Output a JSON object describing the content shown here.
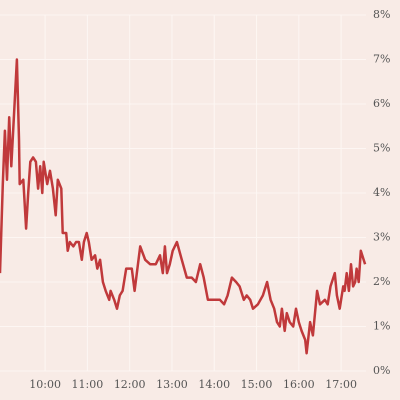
{
  "chart_data": {
    "type": "line",
    "x": [
      536,
      540,
      543,
      546,
      549,
      552,
      554,
      557,
      560,
      563,
      564,
      569,
      573,
      576,
      579,
      583,
      587,
      590,
      593,
      596,
      598,
      603,
      607,
      611,
      615,
      618,
      623,
      625,
      630,
      632,
      635,
      640,
      644,
      648,
      652,
      655,
      659,
      662,
      666,
      671,
      674,
      678,
      682,
      686,
      691,
      693,
      698,
      702,
      706,
      710,
      715,
      723,
      727,
      735,
      742,
      749,
      757,
      763,
      767,
      770,
      773,
      777,
      781,
      787,
      794,
      801,
      808,
      814,
      820,
      825,
      831,
      840,
      848,
      854,
      859,
      865,
      871,
      876,
      882,
      886,
      891,
      895,
      902,
      909,
      915,
      920,
      925,
      929,
      933,
      936,
      940,
      943,
      947,
      952,
      956,
      960,
      964,
      969,
      971,
      976,
      980,
      986,
      990,
      997,
      1001,
      1005,
      1011,
      1014,
      1018,
      1023,
      1025,
      1028,
      1031,
      1034,
      1037,
      1040,
      1042,
      1045,
      1048,
      1054
    ],
    "series": [
      {
        "color": "#c0393b",
        "values": [
          2.2,
          4.2,
          5.4,
          4.3,
          5.7,
          4.6,
          5.2,
          6.1,
          7.0,
          5.2,
          4.2,
          4.3,
          3.2,
          4.0,
          4.7,
          4.8,
          4.7,
          4.1,
          4.6,
          4.0,
          4.7,
          4.2,
          4.5,
          4.1,
          3.5,
          4.3,
          4.1,
          3.1,
          3.1,
          2.7,
          2.9,
          2.8,
          2.9,
          2.9,
          2.5,
          2.9,
          3.1,
          2.9,
          2.5,
          2.6,
          2.3,
          2.5,
          2.0,
          1.8,
          1.6,
          1.8,
          1.6,
          1.4,
          1.7,
          1.8,
          2.3,
          2.3,
          1.8,
          2.8,
          2.5,
          2.4,
          2.4,
          2.6,
          2.2,
          2.8,
          2.2,
          2.4,
          2.7,
          2.9,
          2.5,
          2.1,
          2.1,
          2.0,
          2.4,
          2.1,
          1.6,
          1.6,
          1.6,
          1.5,
          1.7,
          2.1,
          2.0,
          1.9,
          1.6,
          1.7,
          1.6,
          1.4,
          1.5,
          1.7,
          2.0,
          1.6,
          1.4,
          1.1,
          1.0,
          1.4,
          0.9,
          1.3,
          1.1,
          1.0,
          1.4,
          1.1,
          0.9,
          0.7,
          0.4,
          1.1,
          0.8,
          1.8,
          1.5,
          1.6,
          1.5,
          1.9,
          2.2,
          1.7,
          1.4,
          1.9,
          1.8,
          2.2,
          1.8,
          2.4,
          1.9,
          2.0,
          2.3,
          2.0,
          2.7,
          2.4
        ]
      }
    ],
    "xlim": [
      536,
      1061
    ],
    "xticks": [
      {
        "value": 600,
        "label": "10:00"
      },
      {
        "value": 660,
        "label": "11:00"
      },
      {
        "value": 720,
        "label": "12:00"
      },
      {
        "value": 780,
        "label": "13:00"
      },
      {
        "value": 840,
        "label": "14:00"
      },
      {
        "value": 900,
        "label": "15:00"
      },
      {
        "value": 960,
        "label": "16:00"
      },
      {
        "value": 1020,
        "label": "17:00"
      }
    ],
    "ylim": [
      0,
      8
    ],
    "yticks": [
      {
        "value": 0,
        "label": "0%"
      },
      {
        "value": 1,
        "label": "1%"
      },
      {
        "value": 2,
        "label": "2%"
      },
      {
        "value": 3,
        "label": "3%"
      },
      {
        "value": 4,
        "label": "4%"
      },
      {
        "value": 5,
        "label": "5%"
      },
      {
        "value": 6,
        "label": "6%"
      },
      {
        "value": 7,
        "label": "7%"
      },
      {
        "value": 8,
        "label": "8%"
      }
    ],
    "grid": true
  }
}
